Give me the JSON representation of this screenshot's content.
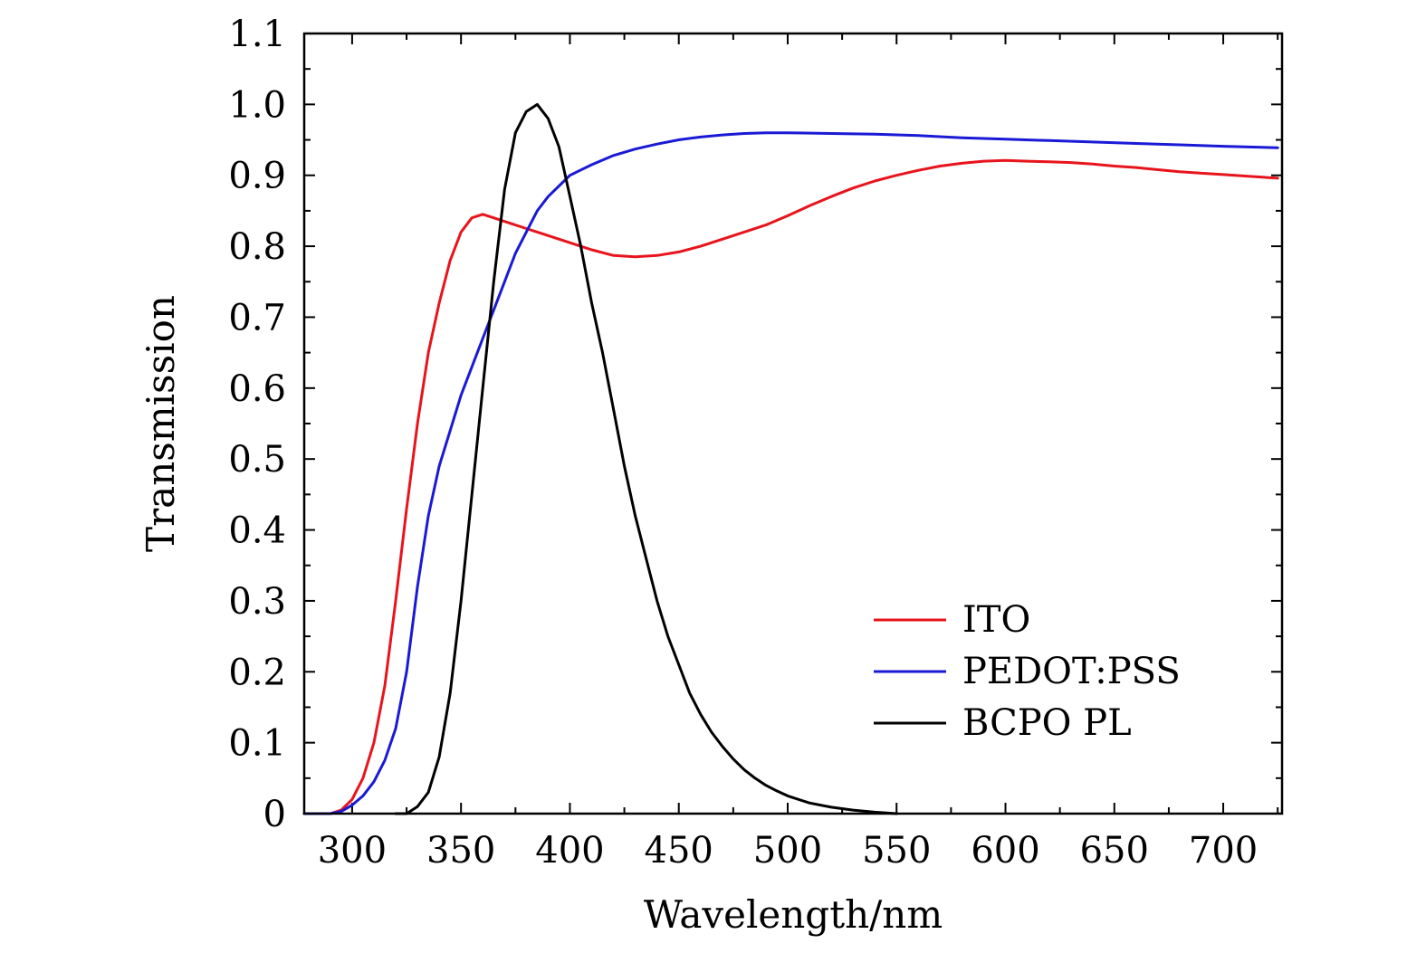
{
  "chart_data": {
    "type": "line",
    "xlabel": "Wavelength/nm",
    "ylabel": "Transmission",
    "xlim": [
      278,
      727
    ],
    "ylim": [
      0,
      1.1
    ],
    "x_ticks": [
      300,
      350,
      400,
      450,
      500,
      550,
      600,
      650,
      700
    ],
    "x_tick_labels": [
      "300",
      "350",
      "400",
      "450",
      "500",
      "550",
      "600",
      "650",
      "700"
    ],
    "y_ticks": [
      0,
      0.1,
      0.2,
      0.3,
      0.4,
      0.5,
      0.6,
      0.7,
      0.8,
      0.9,
      1.0,
      1.1
    ],
    "y_tick_labels": [
      "0",
      "0.1",
      "0.2",
      "0.3",
      "0.4",
      "0.5",
      "0.6",
      "0.7",
      "0.8",
      "0.9",
      "1.0",
      "1.1"
    ],
    "grid": false,
    "legend": "bottom-right",
    "series": [
      {
        "name": "ITO",
        "color": "#e8141c",
        "points": [
          [
            278,
            0
          ],
          [
            290,
            0
          ],
          [
            295,
            0.005
          ],
          [
            300,
            0.02
          ],
          [
            305,
            0.05
          ],
          [
            310,
            0.1
          ],
          [
            315,
            0.18
          ],
          [
            320,
            0.3
          ],
          [
            325,
            0.43
          ],
          [
            330,
            0.55
          ],
          [
            335,
            0.65
          ],
          [
            340,
            0.72
          ],
          [
            345,
            0.78
          ],
          [
            350,
            0.82
          ],
          [
            355,
            0.84
          ],
          [
            360,
            0.845
          ],
          [
            365,
            0.84
          ],
          [
            370,
            0.835
          ],
          [
            380,
            0.825
          ],
          [
            390,
            0.815
          ],
          [
            400,
            0.805
          ],
          [
            410,
            0.795
          ],
          [
            420,
            0.787
          ],
          [
            430,
            0.785
          ],
          [
            440,
            0.787
          ],
          [
            450,
            0.792
          ],
          [
            460,
            0.8
          ],
          [
            470,
            0.81
          ],
          [
            480,
            0.82
          ],
          [
            490,
            0.83
          ],
          [
            500,
            0.843
          ],
          [
            510,
            0.857
          ],
          [
            520,
            0.87
          ],
          [
            530,
            0.882
          ],
          [
            540,
            0.892
          ],
          [
            550,
            0.9
          ],
          [
            560,
            0.907
          ],
          [
            570,
            0.913
          ],
          [
            580,
            0.917
          ],
          [
            590,
            0.92
          ],
          [
            600,
            0.921
          ],
          [
            610,
            0.92
          ],
          [
            620,
            0.919
          ],
          [
            630,
            0.918
          ],
          [
            640,
            0.916
          ],
          [
            650,
            0.913
          ],
          [
            660,
            0.911
          ],
          [
            670,
            0.908
          ],
          [
            680,
            0.905
          ],
          [
            690,
            0.903
          ],
          [
            700,
            0.901
          ],
          [
            710,
            0.899
          ],
          [
            725,
            0.896
          ]
        ]
      },
      {
        "name": "PEDOT:PSS",
        "color": "#1a1ad6",
        "points": [
          [
            278,
            0
          ],
          [
            285,
            0
          ],
          [
            290,
            0
          ],
          [
            295,
            0.003
          ],
          [
            300,
            0.012
          ],
          [
            305,
            0.025
          ],
          [
            310,
            0.045
          ],
          [
            315,
            0.075
          ],
          [
            320,
            0.12
          ],
          [
            325,
            0.2
          ],
          [
            330,
            0.32
          ],
          [
            335,
            0.42
          ],
          [
            340,
            0.49
          ],
          [
            345,
            0.54
          ],
          [
            350,
            0.59
          ],
          [
            355,
            0.63
          ],
          [
            360,
            0.67
          ],
          [
            365,
            0.71
          ],
          [
            370,
            0.75
          ],
          [
            375,
            0.79
          ],
          [
            380,
            0.82
          ],
          [
            385,
            0.85
          ],
          [
            390,
            0.87
          ],
          [
            395,
            0.885
          ],
          [
            400,
            0.9
          ],
          [
            410,
            0.915
          ],
          [
            420,
            0.928
          ],
          [
            430,
            0.937
          ],
          [
            440,
            0.944
          ],
          [
            450,
            0.95
          ],
          [
            460,
            0.954
          ],
          [
            470,
            0.957
          ],
          [
            480,
            0.959
          ],
          [
            490,
            0.96
          ],
          [
            500,
            0.96
          ],
          [
            520,
            0.959
          ],
          [
            540,
            0.958
          ],
          [
            560,
            0.956
          ],
          [
            580,
            0.953
          ],
          [
            600,
            0.951
          ],
          [
            620,
            0.949
          ],
          [
            640,
            0.947
          ],
          [
            660,
            0.945
          ],
          [
            680,
            0.943
          ],
          [
            700,
            0.941
          ],
          [
            725,
            0.939
          ]
        ]
      },
      {
        "name": "BCPO PL",
        "color": "#000000",
        "points": [
          [
            320,
            0
          ],
          [
            325,
            0
          ],
          [
            330,
            0.01
          ],
          [
            335,
            0.03
          ],
          [
            340,
            0.08
          ],
          [
            345,
            0.17
          ],
          [
            350,
            0.3
          ],
          [
            355,
            0.45
          ],
          [
            360,
            0.6
          ],
          [
            365,
            0.75
          ],
          [
            370,
            0.88
          ],
          [
            375,
            0.96
          ],
          [
            380,
            0.99
          ],
          [
            385,
            1.0
          ],
          [
            390,
            0.98
          ],
          [
            395,
            0.94
          ],
          [
            400,
            0.87
          ],
          [
            405,
            0.8
          ],
          [
            410,
            0.72
          ],
          [
            415,
            0.65
          ],
          [
            420,
            0.57
          ],
          [
            425,
            0.49
          ],
          [
            430,
            0.42
          ],
          [
            435,
            0.36
          ],
          [
            440,
            0.3
          ],
          [
            445,
            0.25
          ],
          [
            450,
            0.21
          ],
          [
            455,
            0.17
          ],
          [
            460,
            0.14
          ],
          [
            465,
            0.115
          ],
          [
            470,
            0.095
          ],
          [
            475,
            0.077
          ],
          [
            480,
            0.062
          ],
          [
            485,
            0.05
          ],
          [
            490,
            0.04
          ],
          [
            495,
            0.032
          ],
          [
            500,
            0.025
          ],
          [
            510,
            0.015
          ],
          [
            520,
            0.009
          ],
          [
            530,
            0.005
          ],
          [
            540,
            0.002
          ],
          [
            550,
            0.0
          ]
        ]
      }
    ]
  }
}
